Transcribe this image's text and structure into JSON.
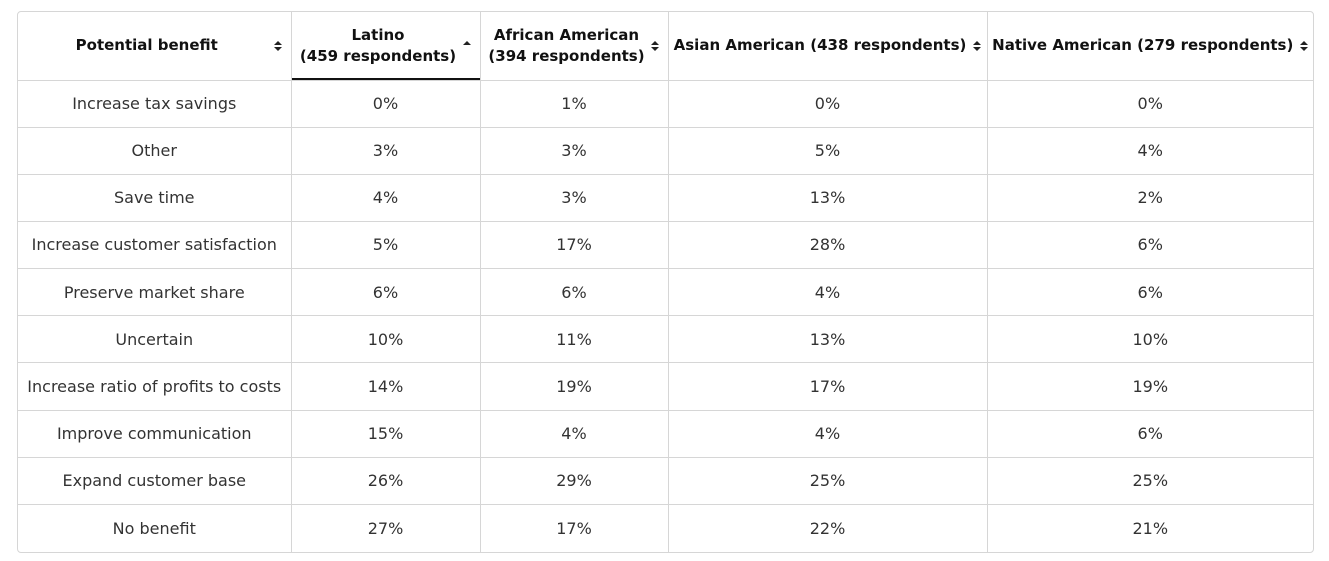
{
  "table": {
    "headers": [
      {
        "lines": [
          "Potential benefit"
        ],
        "sort": "both"
      },
      {
        "lines": [
          "Latino",
          "(459 respondents)"
        ],
        "sort": "asc"
      },
      {
        "lines": [
          "African American",
          "(394 respondents)"
        ],
        "sort": "both"
      },
      {
        "lines": [
          "Asian American (438 respondents)"
        ],
        "sort": "both"
      },
      {
        "lines": [
          "Native American (279 respondents)"
        ],
        "sort": "both"
      }
    ],
    "rows": [
      [
        "Increase tax savings",
        "0%",
        "1%",
        "0%",
        "0%"
      ],
      [
        "Other",
        "3%",
        "3%",
        "5%",
        "4%"
      ],
      [
        "Save time",
        "4%",
        "3%",
        "13%",
        "2%"
      ],
      [
        "Increase customer satisfaction",
        "5%",
        "17%",
        "28%",
        "6%"
      ],
      [
        "Preserve market share",
        "6%",
        "6%",
        "4%",
        "6%"
      ],
      [
        "Uncertain",
        "10%",
        "11%",
        "13%",
        "10%"
      ],
      [
        "Increase ratio of profits to costs",
        "14%",
        "19%",
        "17%",
        "19%"
      ],
      [
        "Improve communication",
        "15%",
        "4%",
        "4%",
        "6%"
      ],
      [
        "Expand customer base",
        "26%",
        "29%",
        "25%",
        "25%"
      ],
      [
        "No benefit",
        "27%",
        "17%",
        "22%",
        "21%"
      ]
    ]
  }
}
